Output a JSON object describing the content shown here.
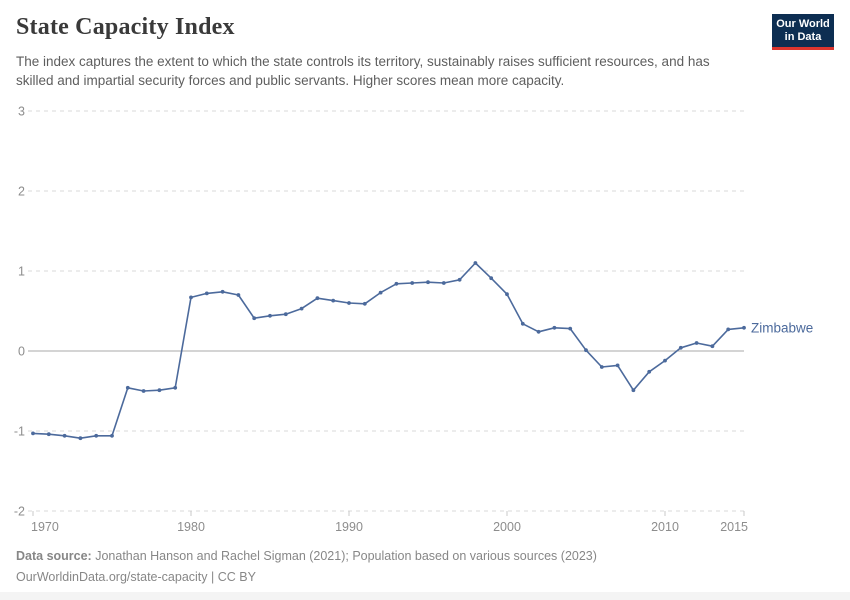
{
  "header": {
    "title": "State Capacity Index",
    "subtitle": "The index captures the extent to which the state controls its territory, sustainably raises sufficient resources, and has skilled and impartial security forces and public servants. Higher scores mean more capacity.",
    "logo_line1": "Our World",
    "logo_line2": "in Data",
    "logo_bg_color": "#0d2e52",
    "logo_accent_color": "#dc352e"
  },
  "chart_data": {
    "type": "line",
    "title": "State Capacity Index",
    "series_label": "Zimbabwe",
    "x": [
      1970,
      1971,
      1972,
      1973,
      1974,
      1975,
      1976,
      1977,
      1978,
      1979,
      1980,
      1981,
      1982,
      1983,
      1984,
      1985,
      1986,
      1987,
      1988,
      1989,
      1990,
      1991,
      1992,
      1993,
      1994,
      1995,
      1996,
      1997,
      1998,
      1999,
      2000,
      2001,
      2002,
      2003,
      2004,
      2005,
      2006,
      2007,
      2008,
      2009,
      2010,
      2011,
      2012,
      2013,
      2014,
      2015
    ],
    "values": [
      -1.03,
      -1.04,
      -1.06,
      -1.09,
      -1.06,
      -1.06,
      -0.46,
      -0.5,
      -0.49,
      -0.46,
      0.67,
      0.72,
      0.74,
      0.7,
      0.41,
      0.44,
      0.46,
      0.53,
      0.66,
      0.63,
      0.6,
      0.59,
      0.73,
      0.84,
      0.85,
      0.86,
      0.85,
      0.89,
      1.1,
      0.91,
      0.71,
      0.34,
      0.24,
      0.29,
      0.28,
      0.01,
      -0.2,
      -0.18,
      -0.49,
      -0.26,
      -0.12,
      0.04,
      0.1,
      0.06,
      0.27,
      0.29
    ],
    "xlabel": "",
    "ylabel": "",
    "xlim": [
      1970,
      2015
    ],
    "ylim": [
      -2,
      3
    ],
    "x_ticks": [
      1970,
      1980,
      1990,
      2000,
      2010,
      2015
    ],
    "y_ticks": [
      3,
      2,
      1,
      0,
      -1,
      -2
    ],
    "grid": "horizontal-dashed, solid zero line",
    "legend_position": "end-of-line label",
    "line_color": "#4c6a9c",
    "grid_color": "#d9d9d9",
    "zero_line_color": "#a8a8a8",
    "axis_text_color": "#8d8d8d",
    "tick_mark_color": "#c8c8c8"
  },
  "footer": {
    "source_label": "Data source:",
    "source_text": " Jonathan Hanson and Rachel Sigman (2021); Population based on various sources (2023)",
    "link_line": "OurWorldinData.org/state-capacity | CC BY"
  }
}
